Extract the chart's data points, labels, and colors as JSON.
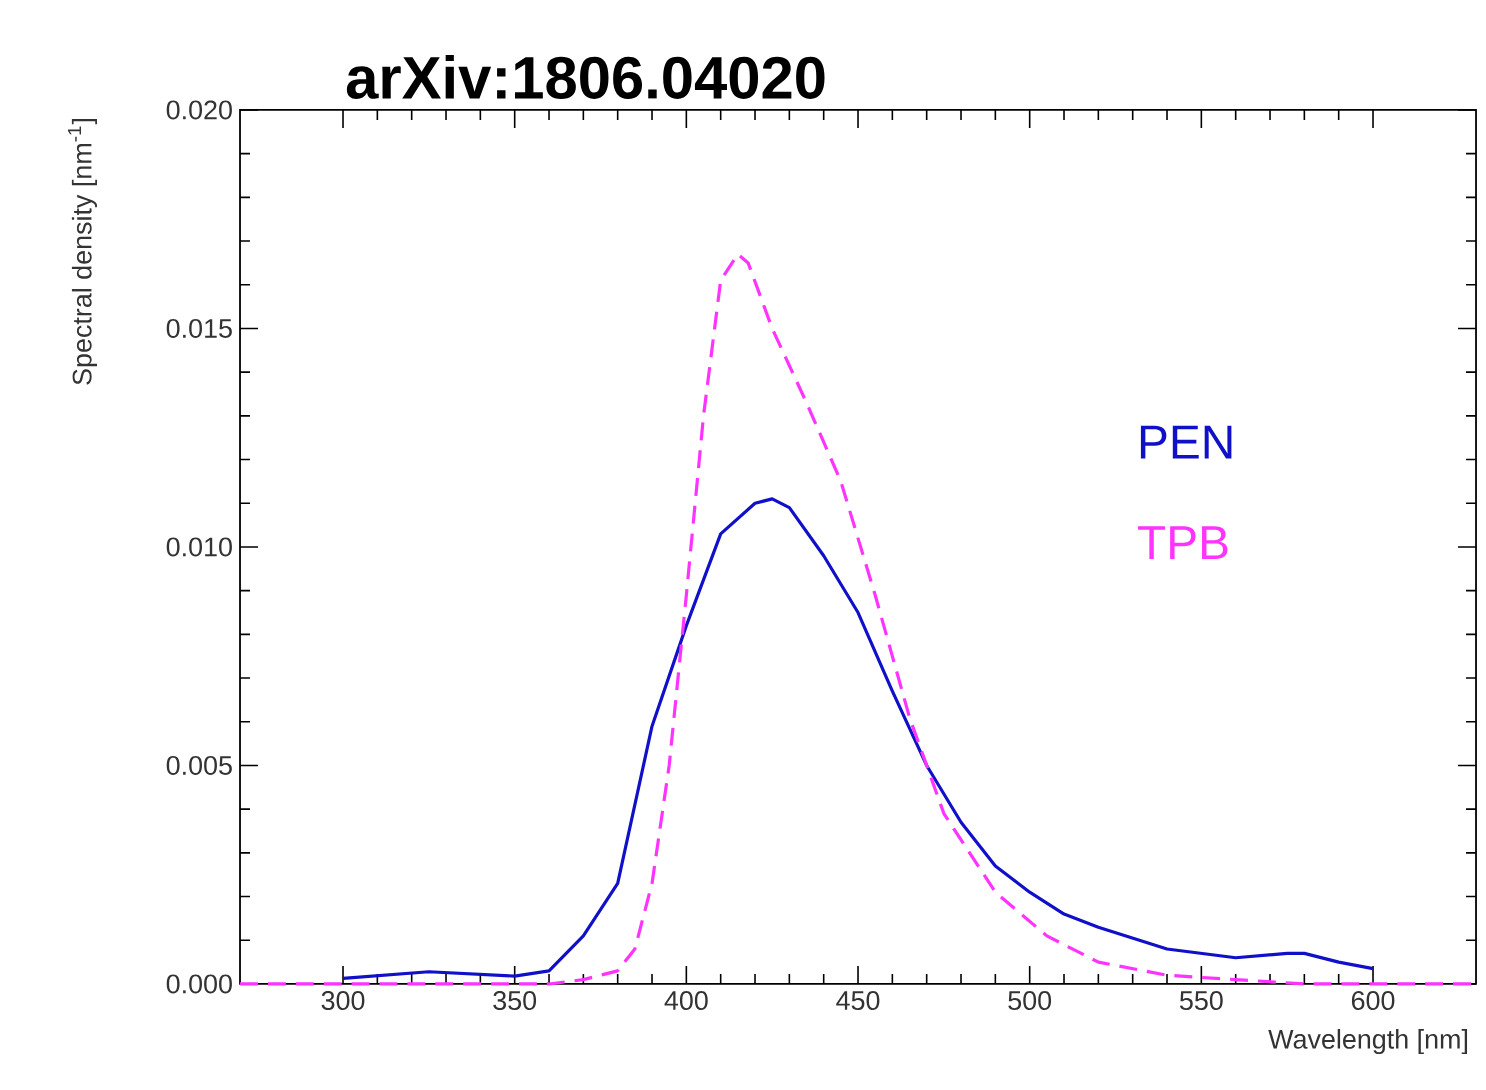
{
  "chart_data": {
    "type": "line",
    "title": "arXiv:1806.04020",
    "xlabel": "Wavelength [nm]",
    "ylabel": "Spectral density [nm$^{-1}$]",
    "xlim": [
      270,
      630
    ],
    "ylim": [
      0,
      0.02
    ],
    "xticks": [
      300,
      350,
      400,
      450,
      500,
      550,
      600
    ],
    "yticks": [
      {
        "value": 0,
        "label": "0.000"
      },
      {
        "value": 0.005,
        "label": "0.005"
      },
      {
        "value": 0.01,
        "label": "0.010"
      },
      {
        "value": 0.015,
        "label": "0.015"
      },
      {
        "value": 0.02,
        "label": "0.020"
      }
    ],
    "grid": false,
    "legend": "right",
    "series": [
      {
        "name": "PEN",
        "color": "#1010c8",
        "line_style": "solid",
        "x": [
          300,
          325,
          350,
          360,
          370,
          380,
          390,
          400,
          410,
          420,
          425,
          430,
          440,
          450,
          460,
          470,
          480,
          490,
          500,
          510,
          520,
          540,
          560,
          575,
          580,
          590,
          600
        ],
        "values": [
          0.00013,
          0.00028,
          0.00018,
          0.0003,
          0.0011,
          0.0023,
          0.0059,
          0.0082,
          0.0103,
          0.011,
          0.0111,
          0.0109,
          0.0098,
          0.0085,
          0.0067,
          0.005,
          0.0037,
          0.0027,
          0.0021,
          0.0016,
          0.0013,
          0.0008,
          0.0006,
          0.0007,
          0.0007,
          0.0005,
          0.00035
        ]
      },
      {
        "name": "TPB",
        "color": "#ff33ff",
        "line_style": "dashed",
        "x": [
          270,
          360,
          370,
          380,
          385,
          390,
          395,
          400,
          405,
          410,
          415,
          418,
          425,
          435,
          445,
          455,
          465,
          475,
          490,
          505,
          520,
          540,
          560,
          580,
          630
        ],
        "values": [
          0,
          0,
          0.0001,
          0.0003,
          0.0008,
          0.0023,
          0.005,
          0.0089,
          0.013,
          0.0161,
          0.0167,
          0.0165,
          0.015,
          0.0133,
          0.0115,
          0.0089,
          0.0061,
          0.0039,
          0.0021,
          0.0011,
          0.0005,
          0.0002,
          0.0001,
          0,
          0
        ]
      }
    ]
  }
}
